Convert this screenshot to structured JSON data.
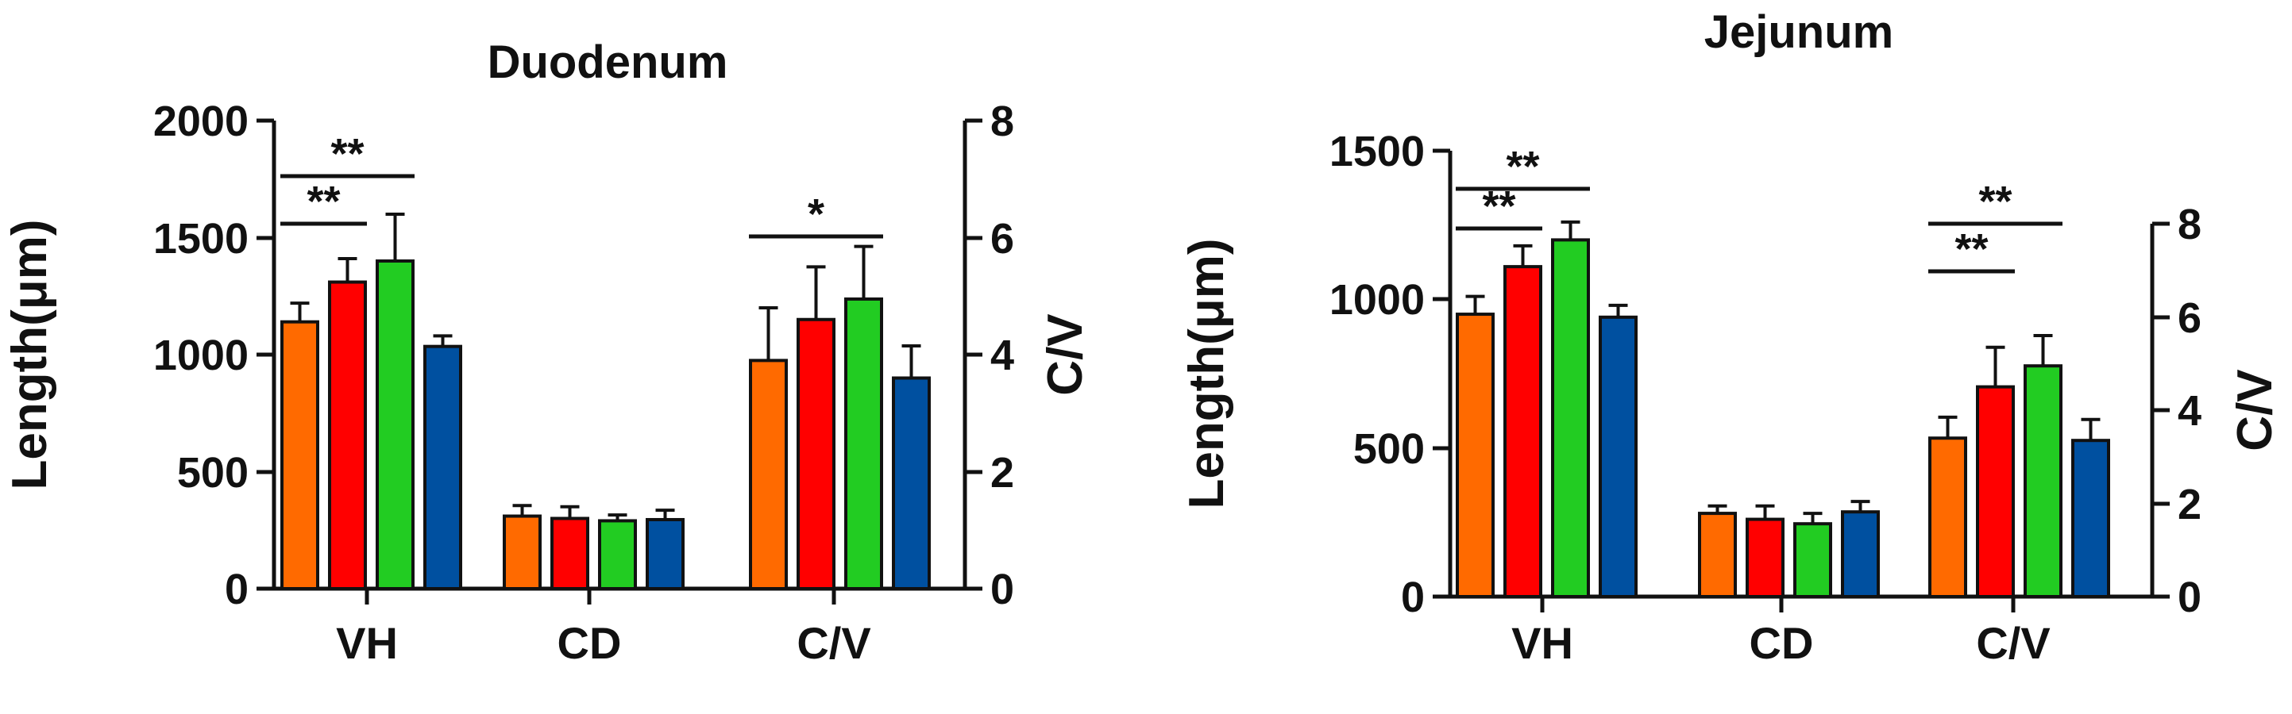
{
  "chart_data": [
    {
      "type": "bar",
      "title": "Duodenum",
      "categories": [
        "VH",
        "CD",
        "C/V"
      ],
      "left_axis": {
        "label": "Length(μm)",
        "ylim": [
          0,
          2000
        ],
        "ticks": [
          "0",
          "500",
          "1000",
          "1500",
          "2000"
        ],
        "applies_to": [
          "VH",
          "CD"
        ]
      },
      "right_axis": {
        "label": "C/V",
        "ylim": [
          0,
          8
        ],
        "ticks": [
          "0",
          "2",
          "4",
          "6",
          "8"
        ],
        "applies_to": [
          "C/V"
        ]
      },
      "series": [
        {
          "color": "#ff6a00",
          "values": [
            1140,
            310,
            3.9
          ],
          "errors": [
            80,
            45,
            0.9
          ]
        },
        {
          "color": "#ff0000",
          "values": [
            1310,
            300,
            4.6
          ],
          "errors": [
            100,
            50,
            0.9
          ]
        },
        {
          "color": "#22cc22",
          "values": [
            1400,
            290,
            4.95
          ],
          "errors": [
            200,
            25,
            0.9
          ]
        },
        {
          "color": "#0050a0",
          "values": [
            1035,
            295,
            3.6
          ],
          "errors": [
            45,
            40,
            0.55
          ]
        }
      ],
      "significance": [
        {
          "category": "VH",
          "from": 0,
          "to": 1,
          "label": "**"
        },
        {
          "category": "VH",
          "from": 0,
          "to": 2,
          "label": "**"
        },
        {
          "category": "C/V",
          "from": 0,
          "to": 2,
          "label": "*"
        }
      ]
    },
    {
      "type": "bar",
      "title": "Jejunum",
      "categories": [
        "VH",
        "CD",
        "C/V"
      ],
      "left_axis": {
        "label": "Length(μm)",
        "ylim": [
          0,
          1500
        ],
        "ticks": [
          "0",
          "500",
          "1000",
          "1500"
        ],
        "applies_to": [
          "VH",
          "CD"
        ]
      },
      "right_axis": {
        "label": "C/V",
        "ylim": [
          0,
          8
        ],
        "ticks": [
          "0",
          "2",
          "4",
          "6",
          "8"
        ],
        "applies_to": [
          "C/V"
        ]
      },
      "series": [
        {
          "color": "#ff6a00",
          "values": [
            950,
            280,
            3.4
          ],
          "errors": [
            60,
            25,
            0.45
          ]
        },
        {
          "color": "#ff0000",
          "values": [
            1110,
            260,
            4.5
          ],
          "errors": [
            70,
            45,
            0.85
          ]
        },
        {
          "color": "#22cc22",
          "values": [
            1200,
            245,
            4.95
          ],
          "errors": [
            60,
            35,
            0.65
          ]
        },
        {
          "color": "#0050a0",
          "values": [
            940,
            285,
            3.35
          ],
          "errors": [
            40,
            35,
            0.45
          ]
        }
      ],
      "significance": [
        {
          "category": "VH",
          "from": 0,
          "to": 1,
          "label": "**"
        },
        {
          "category": "VH",
          "from": 0,
          "to": 2,
          "label": "**"
        },
        {
          "category": "C/V",
          "from": 0,
          "to": 1,
          "label": "**"
        },
        {
          "category": "C/V",
          "from": 0,
          "to": 2,
          "label": "**"
        }
      ]
    }
  ]
}
